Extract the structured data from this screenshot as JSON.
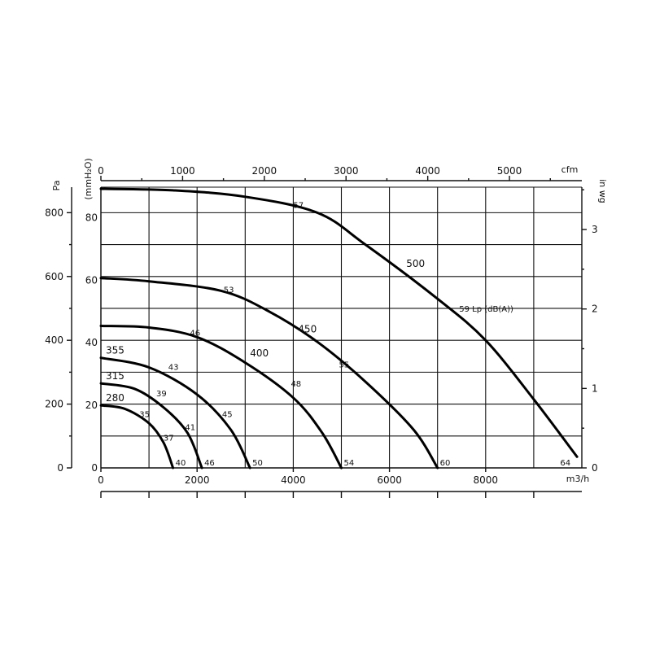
{
  "chart_data": {
    "type": "line",
    "title": "",
    "x_axis": {
      "label": "m3/h",
      "range": [
        0,
        10000
      ],
      "ticks": [
        0,
        2000,
        4000,
        6000,
        8000
      ]
    },
    "x_top_axis": {
      "label": "cfm",
      "ticks": [
        0,
        1000,
        2000,
        3000,
        4000,
        5000
      ]
    },
    "y_axis_pa": {
      "label": "Pa",
      "range": [
        0,
        880
      ],
      "ticks": [
        0,
        200,
        400,
        600,
        800
      ]
    },
    "y_axis_mmh2o": {
      "label": "(mmH₂O)",
      "ticks": [
        0,
        20,
        40,
        60,
        80
      ]
    },
    "y_axis_inwg": {
      "label": "in wg",
      "ticks": [
        0,
        1,
        2,
        3
      ]
    },
    "noise_legend": "59 Lp (dB(A))",
    "grid": true,
    "series": [
      {
        "name": "280",
        "points": [
          [
            0,
            196
          ],
          [
            500,
            185
          ],
          [
            1000,
            140
          ],
          [
            1300,
            80
          ],
          [
            1500,
            0
          ]
        ],
        "noise_labels": [
          {
            "text": "35",
            "x": 800,
            "y": 160
          },
          {
            "text": "37",
            "x": 1300,
            "y": 85
          },
          {
            "text": "40",
            "x": 1550,
            "y": 8
          }
        ]
      },
      {
        "name": "315",
        "points": [
          [
            0,
            265
          ],
          [
            700,
            248
          ],
          [
            1300,
            190
          ],
          [
            1800,
            110
          ],
          [
            2100,
            0
          ]
        ],
        "noise_labels": [
          {
            "text": "39",
            "x": 1150,
            "y": 225
          },
          {
            "text": "41",
            "x": 1750,
            "y": 118
          },
          {
            "text": "46",
            "x": 2150,
            "y": 8
          }
        ]
      },
      {
        "name": "355",
        "points": [
          [
            0,
            345
          ],
          [
            1000,
            315
          ],
          [
            2000,
            230
          ],
          [
            2700,
            120
          ],
          [
            3100,
            0
          ]
        ],
        "noise_labels": [
          {
            "text": "43",
            "x": 1400,
            "y": 307
          },
          {
            "text": "45",
            "x": 2520,
            "y": 160
          },
          {
            "text": "50",
            "x": 3150,
            "y": 8
          }
        ]
      },
      {
        "name": "400",
        "points": [
          [
            0,
            445
          ],
          [
            1000,
            440
          ],
          [
            2000,
            410
          ],
          [
            3000,
            330
          ],
          [
            4000,
            220
          ],
          [
            4600,
            110
          ],
          [
            5000,
            0
          ]
        ],
        "noise_labels": [
          {
            "text": "46",
            "x": 1850,
            "y": 415
          },
          {
            "text": "48",
            "x": 3950,
            "y": 255
          },
          {
            "text": "54",
            "x": 5050,
            "y": 8
          }
        ],
        "name_label_pos": {
          "x": 3100,
          "y": 350
        }
      },
      {
        "name": "450",
        "points": [
          [
            0,
            595
          ],
          [
            1000,
            585
          ],
          [
            2500,
            555
          ],
          [
            3500,
            490
          ],
          [
            4500,
            395
          ],
          [
            5500,
            270
          ],
          [
            6500,
            120
          ],
          [
            7000,
            0
          ]
        ],
        "noise_labels": [
          {
            "text": "53",
            "x": 2550,
            "y": 550
          },
          {
            "text": "55",
            "x": 4950,
            "y": 315
          },
          {
            "text": "60",
            "x": 7050,
            "y": 8
          }
        ],
        "name_label_pos": {
          "x": 4100,
          "y": 425
        }
      },
      {
        "name": "500",
        "points": [
          [
            0,
            875
          ],
          [
            1500,
            870
          ],
          [
            3000,
            850
          ],
          [
            4500,
            800
          ],
          [
            5500,
            700
          ],
          [
            7000,
            530
          ],
          [
            8000,
            400
          ],
          [
            9000,
            215
          ],
          [
            9900,
            35
          ]
        ],
        "noise_labels": [
          {
            "text": "57",
            "x": 4000,
            "y": 815
          },
          {
            "text": "59 Lp (dB(A))",
            "x": 7450,
            "y": 490
          },
          {
            "text": "64",
            "x": 9550,
            "y": 8
          }
        ],
        "name_label_pos": {
          "x": 6350,
          "y": 630
        }
      }
    ]
  }
}
